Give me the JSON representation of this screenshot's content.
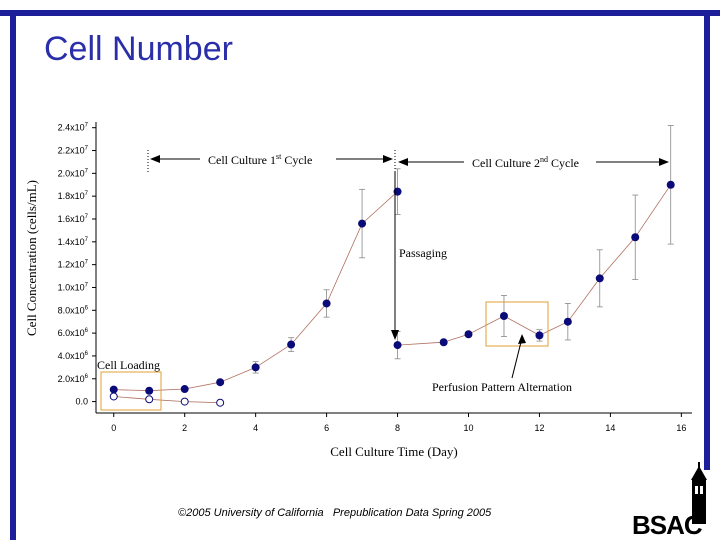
{
  "slide": {
    "title": "Cell Number",
    "footer": "©2005 University of California   Prepublication Data Spring 2005",
    "logo_text": "BSAC",
    "accent_color": "#1d1f9a"
  },
  "chart_data": {
    "type": "scatter",
    "xlabel": "Cell Culture Time (Day)",
    "ylabel": "Cell Concentration (cells/mL)",
    "xlim": [
      -0.5,
      16.3
    ],
    "ylim": [
      -0.1,
      2.45
    ],
    "x_ticks": [
      "0",
      "2",
      "4",
      "6",
      "8",
      "10",
      "12",
      "14",
      "16"
    ],
    "y_ticks": [
      {
        "v": 0.0,
        "m": "0.0",
        "e": ""
      },
      {
        "v": 0.2,
        "m": "2.0x10",
        "e": "6"
      },
      {
        "v": 0.4,
        "m": "4.0x10",
        "e": "6"
      },
      {
        "v": 0.6,
        "m": "6.0x10",
        "e": "6"
      },
      {
        "v": 0.8,
        "m": "8.0x10",
        "e": "6"
      },
      {
        "v": 1.0,
        "m": "1.0x10",
        "e": "7"
      },
      {
        "v": 1.2,
        "m": "1.2x10",
        "e": "7"
      },
      {
        "v": 1.4,
        "m": "1.4x10",
        "e": "7"
      },
      {
        "v": 1.6,
        "m": "1.6x10",
        "e": "7"
      },
      {
        "v": 1.8,
        "m": "1.8x10",
        "e": "7"
      },
      {
        "v": 2.0,
        "m": "2.0x10",
        "e": "7"
      },
      {
        "v": 2.2,
        "m": "2.2x10",
        "e": "7"
      },
      {
        "v": 2.4,
        "m": "2.4x10",
        "e": "7"
      }
    ],
    "y_unit_note": "y values in units of 10^7 cells/mL",
    "series": [
      {
        "marker": "filled",
        "color": "#0a0a78",
        "points": [
          {
            "x": 0,
            "y": 0.105,
            "err": 0.0
          },
          {
            "x": 1,
            "y": 0.095,
            "err": 0.0
          },
          {
            "x": 2,
            "y": 0.11,
            "err": 0.0
          },
          {
            "x": 3,
            "y": 0.17,
            "err": 0.02
          },
          {
            "x": 4,
            "y": 0.3,
            "err": 0.05
          },
          {
            "x": 5,
            "y": 0.5,
            "err": 0.06
          },
          {
            "x": 6,
            "y": 0.86,
            "err": 0.12
          },
          {
            "x": 7,
            "y": 1.56,
            "err": 0.3
          },
          {
            "x": 8,
            "y": 1.84,
            "err": 0.2
          },
          {
            "x": 8,
            "y": 0.495,
            "err": 0.12
          },
          {
            "x": 9.3,
            "y": 0.52,
            "err": 0.0
          },
          {
            "x": 10,
            "y": 0.59,
            "err": 0.0
          },
          {
            "x": 11,
            "y": 0.75,
            "err": 0.18
          },
          {
            "x": 12,
            "y": 0.58,
            "err": 0.05
          },
          {
            "x": 12.8,
            "y": 0.7,
            "err": 0.16
          },
          {
            "x": 13.7,
            "y": 1.08,
            "err": 0.25
          },
          {
            "x": 14.7,
            "y": 1.44,
            "err": 0.37
          },
          {
            "x": 15.7,
            "y": 1.9,
            "err": 0.52
          }
        ]
      },
      {
        "marker": "open",
        "color": "#0a0a78",
        "points": [
          {
            "x": 0,
            "y": 0.045
          },
          {
            "x": 1,
            "y": 0.02
          },
          {
            "x": 2,
            "y": 0.0
          },
          {
            "x": 3,
            "y": -0.01
          }
        ]
      }
    ],
    "annotations": {
      "cycle1": "Cell Culture 1",
      "cycle1_sup": "st",
      "cycle1_tail": " Cycle",
      "cycle2": "Cell Culture 2",
      "cycle2_sup": "nd",
      "cycle2_tail": " Cycle",
      "passaging": "Passaging",
      "cell_loading": "Cell Loading",
      "perfusion": "Perfusion Pattern Alternation"
    }
  }
}
